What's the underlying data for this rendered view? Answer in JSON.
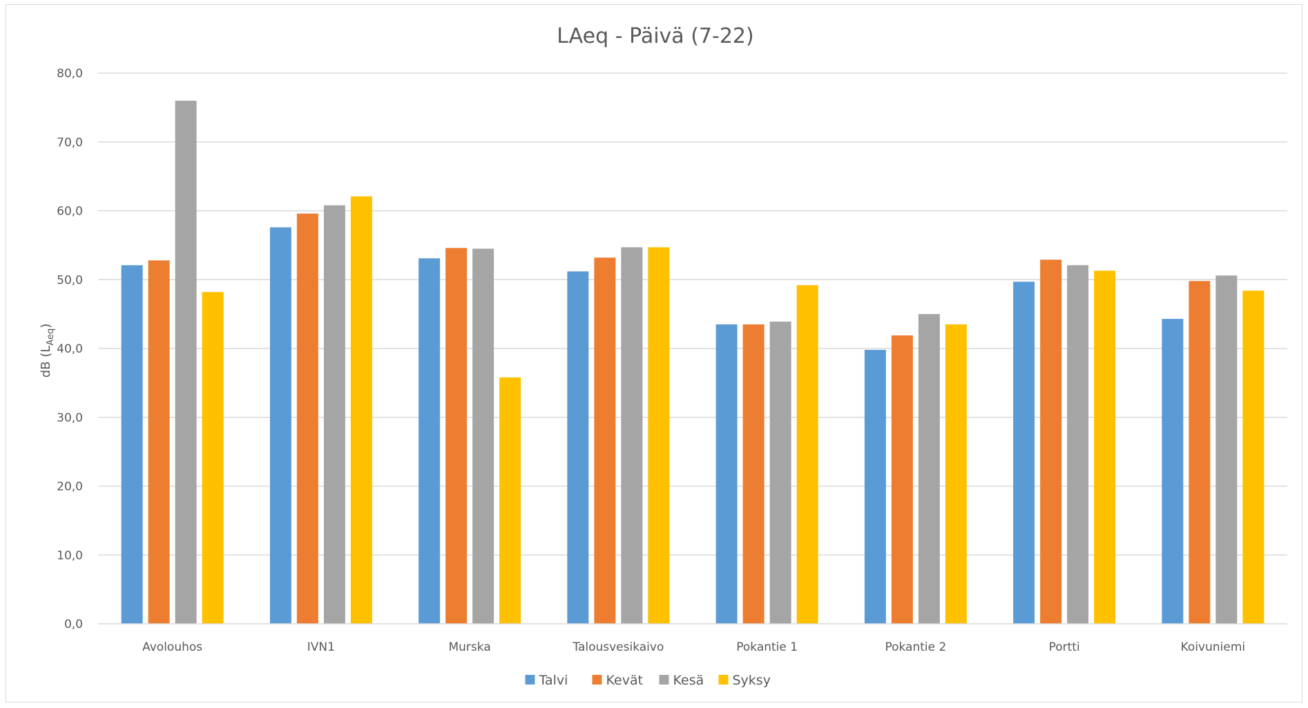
{
  "chart_data": {
    "type": "bar",
    "title": "LAeq - Päivä (7-22)",
    "xlabel": "",
    "ylabel": "dB (LAeq)",
    "ylabel_parts": {
      "main": "dB (L",
      "sub": "Aeq",
      "end": ")"
    },
    "ylim": [
      0,
      80
    ],
    "yticks": [
      "0,0",
      "10,0",
      "20,0",
      "30,0",
      "40,0",
      "50,0",
      "60,0",
      "70,0",
      "80,0"
    ],
    "grid": true,
    "legend_position": "bottom",
    "categories": [
      "Avolouhos",
      "IVN1",
      "Murska",
      "Talousvesikaivo",
      "Pokantie 1",
      "Pokantie 2",
      "Portti",
      "Koivuniemi"
    ],
    "series": [
      {
        "name": "Talvi",
        "color": "#5b9bd5",
        "values": [
          52.1,
          57.6,
          53.1,
          51.2,
          43.5,
          39.8,
          49.7,
          44.3
        ]
      },
      {
        "name": "Kevät",
        "color": "#ed7d31",
        "values": [
          52.8,
          59.6,
          54.6,
          53.2,
          43.5,
          41.9,
          52.9,
          49.8
        ]
      },
      {
        "name": "Kesä",
        "color": "#a5a5a5",
        "values": [
          76.0,
          60.8,
          54.5,
          54.7,
          43.9,
          45.0,
          52.1,
          50.6
        ]
      },
      {
        "name": "Syksy",
        "color": "#ffc000",
        "values": [
          48.2,
          62.1,
          35.8,
          54.7,
          49.2,
          43.5,
          51.3,
          48.4
        ]
      }
    ]
  }
}
